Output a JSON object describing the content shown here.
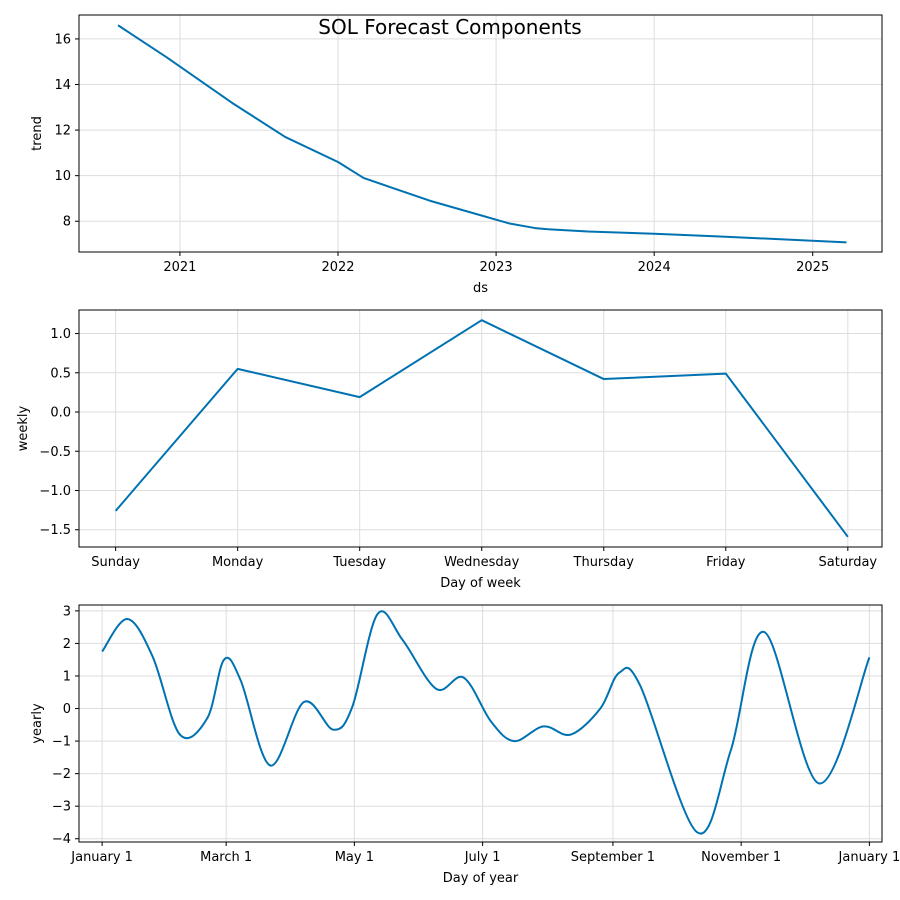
{
  "chart_data": {
    "title": "SOL Forecast Components",
    "panels": [
      {
        "type": "line",
        "name": "trend",
        "xlabel": "ds",
        "ylabel": "trend",
        "xscale": "date",
        "xlim": [
          "2020-05-13",
          "2025-06-10"
        ],
        "ylim": [
          6.65,
          17.05
        ],
        "xticks": [
          {
            "value": "2021-01-01",
            "label": "2021"
          },
          {
            "value": "2022-01-01",
            "label": "2022"
          },
          {
            "value": "2023-01-01",
            "label": "2023"
          },
          {
            "value": "2024-01-01",
            "label": "2024"
          },
          {
            "value": "2025-01-01",
            "label": "2025"
          }
        ],
        "yticks": [
          8,
          10,
          12,
          14,
          16
        ],
        "grid": true,
        "series": [
          {
            "x": [
              "2020-08-11",
              "2020-12-01",
              "2021-05-01",
              "2021-09-01",
              "2022-01-01",
              "2022-03-01",
              "2022-05-01",
              "2022-08-01",
              "2022-11-01",
              "2023-02-01",
              "2023-04-01",
              "2023-05-01",
              "2023-08-01",
              "2024-01-01",
              "2024-06-01",
              "2024-12-01",
              "2025-03-20"
            ],
            "y": [
              16.6,
              15.2,
              13.2,
              11.7,
              10.6,
              9.9,
              9.5,
              8.9,
              8.4,
              7.9,
              7.7,
              7.65,
              7.55,
              7.45,
              7.33,
              7.17,
              7.07
            ]
          }
        ]
      },
      {
        "type": "line",
        "name": "weekly",
        "xlabel": "Day of week",
        "ylabel": "weekly",
        "categories": [
          "Sunday",
          "Monday",
          "Tuesday",
          "Wednesday",
          "Thursday",
          "Friday",
          "Saturday"
        ],
        "xlim": [
          -0.3,
          6.28
        ],
        "ylim": [
          -1.72,
          1.3
        ],
        "yticks": [
          -1.5,
          -1.0,
          -0.5,
          0.0,
          0.5,
          1.0
        ],
        "ytick_labels": [
          "−1.5",
          "−1.0",
          "−0.5",
          "0.0",
          "0.5",
          "1.0"
        ],
        "grid": true,
        "series": [
          {
            "values": [
              -1.26,
              0.55,
              0.19,
              1.17,
              0.42,
              0.49,
              -1.59
            ]
          }
        ]
      },
      {
        "type": "line",
        "name": "yearly",
        "xlabel": "Day of year",
        "ylabel": "yearly",
        "xlim": [
          -11,
          371
        ],
        "ylim": [
          -4.1,
          3.18
        ],
        "xticks": [
          {
            "value": 0,
            "label": "January 1"
          },
          {
            "value": 59,
            "label": "March 1"
          },
          {
            "value": 120,
            "label": "May 1"
          },
          {
            "value": 181,
            "label": "July 1"
          },
          {
            "value": 243,
            "label": "September 1"
          },
          {
            "value": 304,
            "label": "November 1"
          },
          {
            "value": 365,
            "label": "January 1"
          }
        ],
        "yticks": [
          -4,
          -3,
          -2,
          -1,
          0,
          1,
          2,
          3
        ],
        "ytick_labels": [
          "−4",
          "−3",
          "−2",
          "−1",
          "0",
          "1",
          "2",
          "3"
        ],
        "grid": true,
        "series": [
          {
            "x": [
              0,
              12,
              24,
              37,
              50,
              58,
              66,
              80,
              96,
              110,
              119,
              131,
              143,
              159,
              172,
              185,
              196,
              210,
              223,
              237,
              246,
              256,
              283,
              299,
              315,
              341,
              365
            ],
            "y": [
              1.75,
              2.75,
              1.6,
              -0.8,
              -0.3,
              1.5,
              0.85,
              -1.75,
              0.2,
              -0.65,
              0.05,
              2.9,
              2.1,
              0.6,
              0.95,
              -0.4,
              -1.0,
              -0.55,
              -0.8,
              0.0,
              1.1,
              0.7,
              -3.8,
              -1.3,
              2.35,
              -2.3,
              1.57
            ]
          }
        ]
      }
    ]
  }
}
